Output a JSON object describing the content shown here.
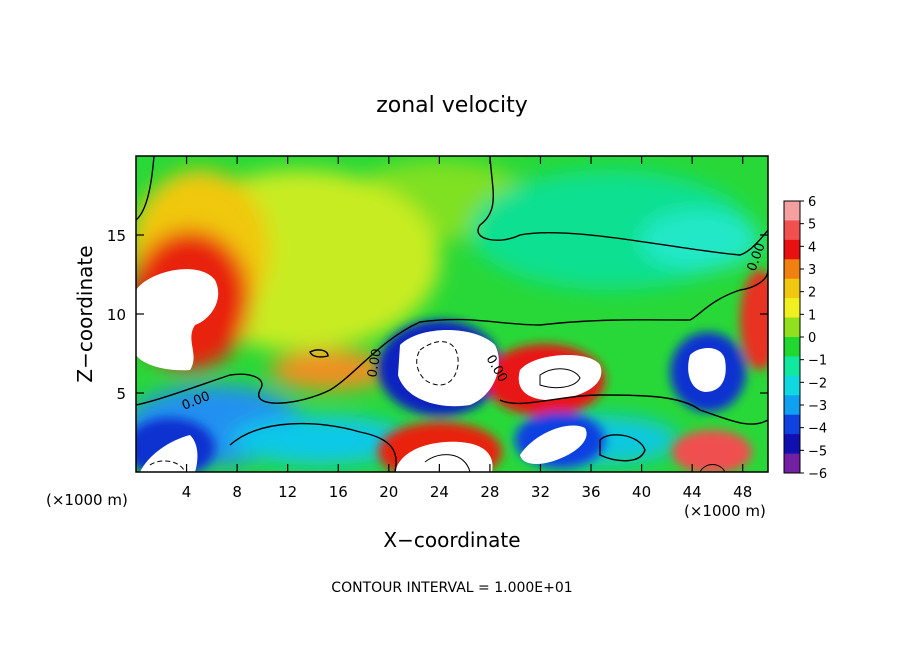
{
  "chart_data": {
    "type": "heatmap",
    "title": "zonal velocity",
    "xlabel": "X−coordinate",
    "ylabel": "Z−coordinate",
    "x_units_left": "(×1000 m)",
    "x_units_right": "(×1000 m)",
    "xlim": [
      0,
      50
    ],
    "ylim": [
      0,
      20
    ],
    "x_ticks": [
      4,
      8,
      12,
      16,
      20,
      24,
      28,
      32,
      36,
      40,
      44,
      48
    ],
    "y_ticks": [
      5,
      10,
      15
    ],
    "colorbar": {
      "labels": [
        "6",
        "5",
        "4",
        "3",
        "2",
        "1",
        "0",
        "−1",
        "−2",
        "−3",
        "−4",
        "−5",
        "−6"
      ],
      "colors": [
        "#f4a0a0",
        "#f05050",
        "#e81010",
        "#f08010",
        "#f0c810",
        "#f0f020",
        "#90e020",
        "#20d830",
        "#10e8a0",
        "#10d8e0",
        "#10a0f0",
        "#1040e0",
        "#1010b0",
        "#7020a0"
      ]
    },
    "contour_labels": [
      "0.00",
      "0.00",
      "0.00",
      "0.00"
    ],
    "footer": "CONTOUR INTERVAL = 1.000E+01"
  }
}
